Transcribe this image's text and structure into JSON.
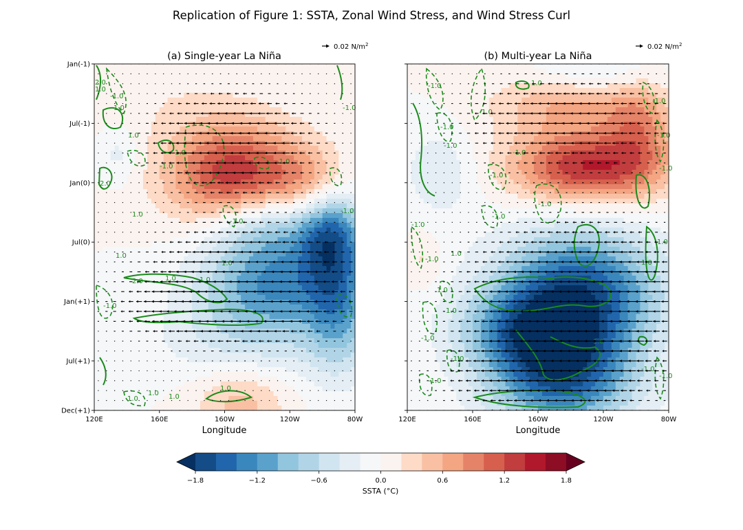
{
  "chart_data": {
    "type": "heatmap",
    "title": "Replication of Figure 1: SSTA, Zonal Wind Stress, and Wind Stress Curl",
    "xlabel": "Longitude",
    "x_range_degE": [
      120,
      280
    ],
    "x_ticks": [
      {
        "label": "120E",
        "lon": 120
      },
      {
        "label": "160E",
        "lon": 160
      },
      {
        "label": "160W",
        "lon": 200
      },
      {
        "label": "120W",
        "lon": 240
      },
      {
        "label": "80W",
        "lon": 280
      }
    ],
    "y_range_month": [
      0,
      35
    ],
    "y_ticks": [
      {
        "label": "Jan(-1)",
        "month": 0
      },
      {
        "label": "Jul(-1)",
        "month": 6
      },
      {
        "label": "Jan(0)",
        "month": 12
      },
      {
        "label": "Jul(0)",
        "month": 18
      },
      {
        "label": "Jan(+1)",
        "month": 24
      },
      {
        "label": "Jul(+1)",
        "month": 30
      },
      {
        "label": "Dec(+1)",
        "month": 35
      }
    ],
    "colorbar": {
      "label": "SSTA (°C)",
      "vmin": -2.0,
      "vmax": 2.0,
      "step": 0.2,
      "extend": "both",
      "tick_values": [
        -1.8,
        -1.2,
        -0.6,
        0.0,
        0.6,
        1.2,
        1.8
      ],
      "tick_labels": [
        "−1.8",
        "−1.2",
        "−0.6",
        "0.0",
        "0.6",
        "1.2",
        "1.8"
      ],
      "colors": [
        "#053061",
        "#134c87",
        "#2166ac",
        "#3a87bd",
        "#5aa2cc",
        "#92c5de",
        "#b1d5e7",
        "#d1e5f0",
        "#e4eef4",
        "#f5f7f9",
        "#fbf3ef",
        "#fddbc7",
        "#f9c0a3",
        "#f4a582",
        "#e58368",
        "#d6604d",
        "#c13d3e",
        "#b2182b",
        "#8d0d25",
        "#67001f"
      ]
    },
    "quiver_key_label": "0.02 N/m",
    "quiver_key_exp": "2",
    "contour_line_labels": [
      "-1.0",
      "1.0",
      "2.0",
      "-2.0"
    ],
    "panels": [
      {
        "title": "(a) Single-year La Niña",
        "ssta_features": [
          {
            "lon": 205,
            "month": 11.5,
            "amp": 1.4,
            "sx": 28,
            "sy": 4.0
          },
          {
            "lon": 250,
            "month": 12.5,
            "amp": 0.6,
            "sx": 18,
            "sy": 3.0
          },
          {
            "lon": 225,
            "month": 16,
            "amp": -0.9,
            "sx": 28,
            "sy": 2.5
          },
          {
            "lon": 265,
            "month": 17,
            "amp": -1.0,
            "sx": 14,
            "sy": 3.0
          },
          {
            "lon": 230,
            "month": 22,
            "amp": -1.2,
            "sx": 32,
            "sy": 3.5
          },
          {
            "lon": 270,
            "month": 24,
            "amp": -0.9,
            "sx": 14,
            "sy": 5.0
          },
          {
            "lon": 215,
            "month": 28,
            "amp": -0.4,
            "sx": 40,
            "sy": 3.0
          },
          {
            "lon": 210,
            "month": 34,
            "amp": 0.5,
            "sx": 20,
            "sy": 2.5
          },
          {
            "lon": 135,
            "month": 9,
            "amp": -0.3,
            "sx": 8,
            "sy": 2.0
          },
          {
            "lon": 150,
            "month": 2,
            "amp": 0.15,
            "sx": 35,
            "sy": 4.0
          }
        ],
        "wind_features": [
          {
            "lon": 205,
            "month": 8,
            "amp": -1.0,
            "sx": 30,
            "sy": 3.0
          },
          {
            "lon": 215,
            "month": 22,
            "amp": -1.0,
            "sx": 38,
            "sy": 3.5
          },
          {
            "lon": 195,
            "month": 25,
            "amp": -0.6,
            "sx": 35,
            "sy": 1.8
          }
        ]
      },
      {
        "title": "(b) Multi-year La Niña",
        "ssta_features": [
          {
            "lon": 230,
            "month": 10.5,
            "amp": 1.4,
            "sx": 32,
            "sy": 2.5
          },
          {
            "lon": 215,
            "month": 4,
            "amp": 0.6,
            "sx": 30,
            "sy": 2.5
          },
          {
            "lon": 262,
            "month": 6,
            "amp": 0.7,
            "sx": 15,
            "sy": 3.5
          },
          {
            "lon": 140,
            "month": 11,
            "amp": -0.4,
            "sx": 15,
            "sy": 3.0
          },
          {
            "lon": 225,
            "month": 23,
            "amp": -1.6,
            "sx": 36,
            "sy": 4.5
          },
          {
            "lon": 215,
            "month": 32,
            "amp": -1.4,
            "sx": 32,
            "sy": 3.5
          },
          {
            "lon": 195,
            "month": 27,
            "amp": -1.0,
            "sx": 30,
            "sy": 3.0
          },
          {
            "lon": 235,
            "month": 1,
            "amp": -0.4,
            "sx": 30,
            "sy": 1.5
          },
          {
            "lon": 130,
            "month": 20,
            "amp": 0.25,
            "sx": 8,
            "sy": 2.0
          }
        ],
        "wind_features": [
          {
            "lon": 220,
            "month": 6,
            "amp": -0.7,
            "sx": 40,
            "sy": 3.0
          },
          {
            "lon": 225,
            "month": 23,
            "amp": -1.1,
            "sx": 40,
            "sy": 4.0
          },
          {
            "lon": 210,
            "month": 31,
            "amp": -0.9,
            "sx": 38,
            "sy": 3.0
          }
        ]
      }
    ]
  }
}
